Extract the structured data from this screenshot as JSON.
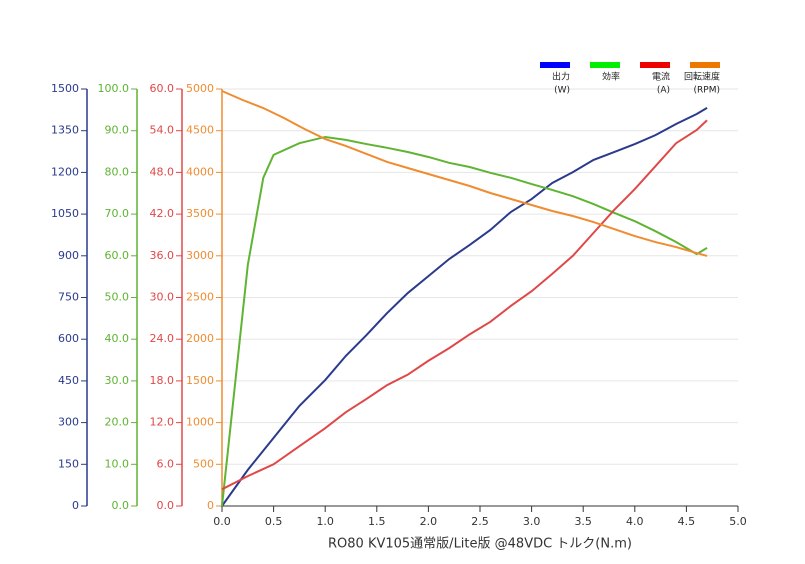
{
  "chart_data": {
    "type": "line",
    "x_label": "RO80 KV105通常版/Lite版 @48VDC トルク(N.m)",
    "xlim": [
      0,
      5.0
    ],
    "xticks": [
      {
        "value": 0,
        "label": "0.0"
      },
      {
        "value": 0.5,
        "label": "0.5"
      },
      {
        "value": 1,
        "label": "1.0"
      },
      {
        "value": 1.5,
        "label": "1.5"
      },
      {
        "value": 2,
        "label": "2.0"
      },
      {
        "value": 2.5,
        "label": "2.5"
      },
      {
        "value": 3,
        "label": "3.0"
      },
      {
        "value": 3.5,
        "label": "3.5"
      },
      {
        "value": 4,
        "label": "4.0"
      },
      {
        "value": 4.5,
        "label": "4.5"
      },
      {
        "value": 5,
        "label": "5.0"
      }
    ],
    "grid": true,
    "y_axes": [
      {
        "color": "#2a3a8c",
        "ylim": [
          0,
          1500
        ],
        "yticks": [
          0,
          150,
          300,
          450,
          600,
          750,
          900,
          1050,
          1200,
          1350,
          1500
        ]
      },
      {
        "color": "#5fb432",
        "ylim": [
          0,
          100
        ],
        "yticks": [
          {
            "value": 0,
            "label": "0.0"
          },
          {
            "value": 10,
            "label": "10.0"
          },
          {
            "value": 20,
            "label": "20.0"
          },
          {
            "value": 30,
            "label": "30.0"
          },
          {
            "value": 40,
            "label": "40.0"
          },
          {
            "value": 50,
            "label": "50.0"
          },
          {
            "value": 60,
            "label": "60.0"
          },
          {
            "value": 70,
            "label": "70.0"
          },
          {
            "value": 80,
            "label": "80.0"
          },
          {
            "value": 90,
            "label": "90.0"
          },
          {
            "value": 100,
            "label": "100.0"
          }
        ]
      },
      {
        "color": "#e04848",
        "ylim": [
          0,
          60
        ],
        "yticks": [
          {
            "value": 0,
            "label": "0.0"
          },
          {
            "value": 6,
            "label": "6.0"
          },
          {
            "value": 12,
            "label": "12.0"
          },
          {
            "value": 18,
            "label": "18.0"
          },
          {
            "value": 24,
            "label": "24.0"
          },
          {
            "value": 30,
            "label": "30.0"
          },
          {
            "value": 36,
            "label": "36.0"
          },
          {
            "value": 42,
            "label": "42.0"
          },
          {
            "value": 48,
            "label": "48.0"
          },
          {
            "value": 54,
            "label": "54.0"
          },
          {
            "value": 60,
            "label": "60.0"
          }
        ]
      },
      {
        "color": "#f08c30",
        "ylim": [
          0,
          5000
        ],
        "yticks": [
          0,
          500,
          1000,
          1500,
          2000,
          2500,
          3000,
          3500,
          4000,
          4500,
          5000
        ]
      }
    ],
    "series": [
      {
        "name": "出力",
        "unit": "(W)",
        "color": "#2a3a8c",
        "legend_color": "#0000ff",
        "axis": 0,
        "x": [
          0,
          0.25,
          0.5,
          0.75,
          1.0,
          1.2,
          1.4,
          1.6,
          1.8,
          2.0,
          2.2,
          2.4,
          2.6,
          2.8,
          3.0,
          3.2,
          3.4,
          3.6,
          3.8,
          4.0,
          4.2,
          4.4,
          4.6,
          4.7
        ],
        "values": [
          0,
          130,
          245,
          360,
          453,
          540,
          615,
          694,
          766,
          827,
          888,
          939,
          993,
          1058,
          1104,
          1162,
          1201,
          1245,
          1273,
          1302,
          1334,
          1374,
          1410,
          1432
        ]
      },
      {
        "name": "効率",
        "color": "#5fb432",
        "legend_color": "#00ee00",
        "axis": 1,
        "x": [
          0,
          0.25,
          0.4,
          0.5,
          0.75,
          1.0,
          1.2,
          1.4,
          1.6,
          1.8,
          2.0,
          2.2,
          2.4,
          2.6,
          2.8,
          3.0,
          3.2,
          3.4,
          3.6,
          3.8,
          4.0,
          4.2,
          4.4,
          4.6,
          4.7
        ],
        "values": [
          0,
          57.8,
          78.7,
          84.2,
          87,
          88.5,
          87.8,
          86.8,
          85.9,
          84.9,
          83.7,
          82.3,
          81.3,
          79.9,
          78.7,
          77.2,
          75.8,
          74.3,
          72.4,
          70.3,
          68.3,
          65.9,
          63.3,
          60.4,
          61.9
        ]
      },
      {
        "name": "電流",
        "unit": "(A)",
        "color": "#e04848",
        "legend_color": "#ee0000",
        "axis": 2,
        "x": [
          0,
          0.25,
          0.5,
          0.75,
          1.0,
          1.2,
          1.4,
          1.6,
          1.8,
          2.0,
          2.2,
          2.4,
          2.6,
          2.8,
          3.0,
          3.2,
          3.4,
          3.6,
          3.8,
          4.0,
          4.2,
          4.4,
          4.6,
          4.7
        ],
        "values": [
          2.4,
          4.3,
          6.0,
          8.6,
          11.2,
          13.5,
          15.4,
          17.4,
          18.9,
          20.9,
          22.7,
          24.7,
          26.5,
          28.8,
          30.9,
          33.4,
          36.0,
          39.3,
          42.6,
          45.6,
          48.9,
          52.2,
          54.1,
          55.5
        ]
      },
      {
        "name": "回転速度",
        "unit": "(RPM)",
        "color": "#f08c30",
        "legend_color": "#ee7700",
        "axis": 3,
        "x": [
          0,
          0.2,
          0.4,
          0.6,
          0.8,
          1.0,
          1.2,
          1.4,
          1.6,
          1.8,
          2.0,
          2.2,
          2.4,
          2.6,
          2.8,
          3.0,
          3.2,
          3.4,
          3.6,
          3.8,
          4.0,
          4.2,
          4.4,
          4.6,
          4.7
        ],
        "values": [
          4976,
          4868,
          4772,
          4652,
          4520,
          4400,
          4317,
          4221,
          4125,
          4053,
          3981,
          3909,
          3837,
          3753,
          3681,
          3609,
          3537,
          3477,
          3405,
          3321,
          3237,
          3165,
          3105,
          3033,
          2998
        ]
      }
    ]
  }
}
